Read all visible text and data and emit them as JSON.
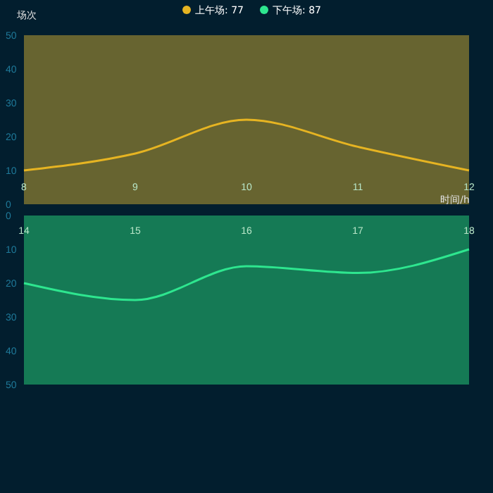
{
  "chart_data": [
    {
      "type": "line",
      "ylabel": "场次",
      "xlabel": "时间/h",
      "legend": "top",
      "x": [
        8,
        9,
        10,
        11,
        12
      ],
      "xlim": [
        8,
        12
      ],
      "xticks": [
        8,
        9,
        10,
        11,
        12
      ],
      "ylim": [
        0,
        50
      ],
      "yticks": [
        0,
        10,
        20,
        30,
        40,
        50
      ],
      "marker": "none",
      "series": [
        {
          "name": "上午场: 77",
          "color": "#e6b422",
          "values": [
            10,
            15,
            25,
            17,
            10
          ]
        }
      ]
    },
    {
      "type": "line",
      "legend": "top",
      "x": [
        14,
        15,
        16,
        17,
        18
      ],
      "xlim": [
        14,
        18
      ],
      "xticks": [
        14,
        15,
        16,
        17,
        18
      ],
      "ylim": [
        50,
        0
      ],
      "yticks": [
        0,
        10,
        20,
        30,
        40,
        50
      ],
      "marker": "none",
      "series": [
        {
          "name": "下午场: 87",
          "color": "#2ee68f",
          "values": [
            20,
            25,
            15,
            17,
            10
          ]
        }
      ]
    }
  ]
}
